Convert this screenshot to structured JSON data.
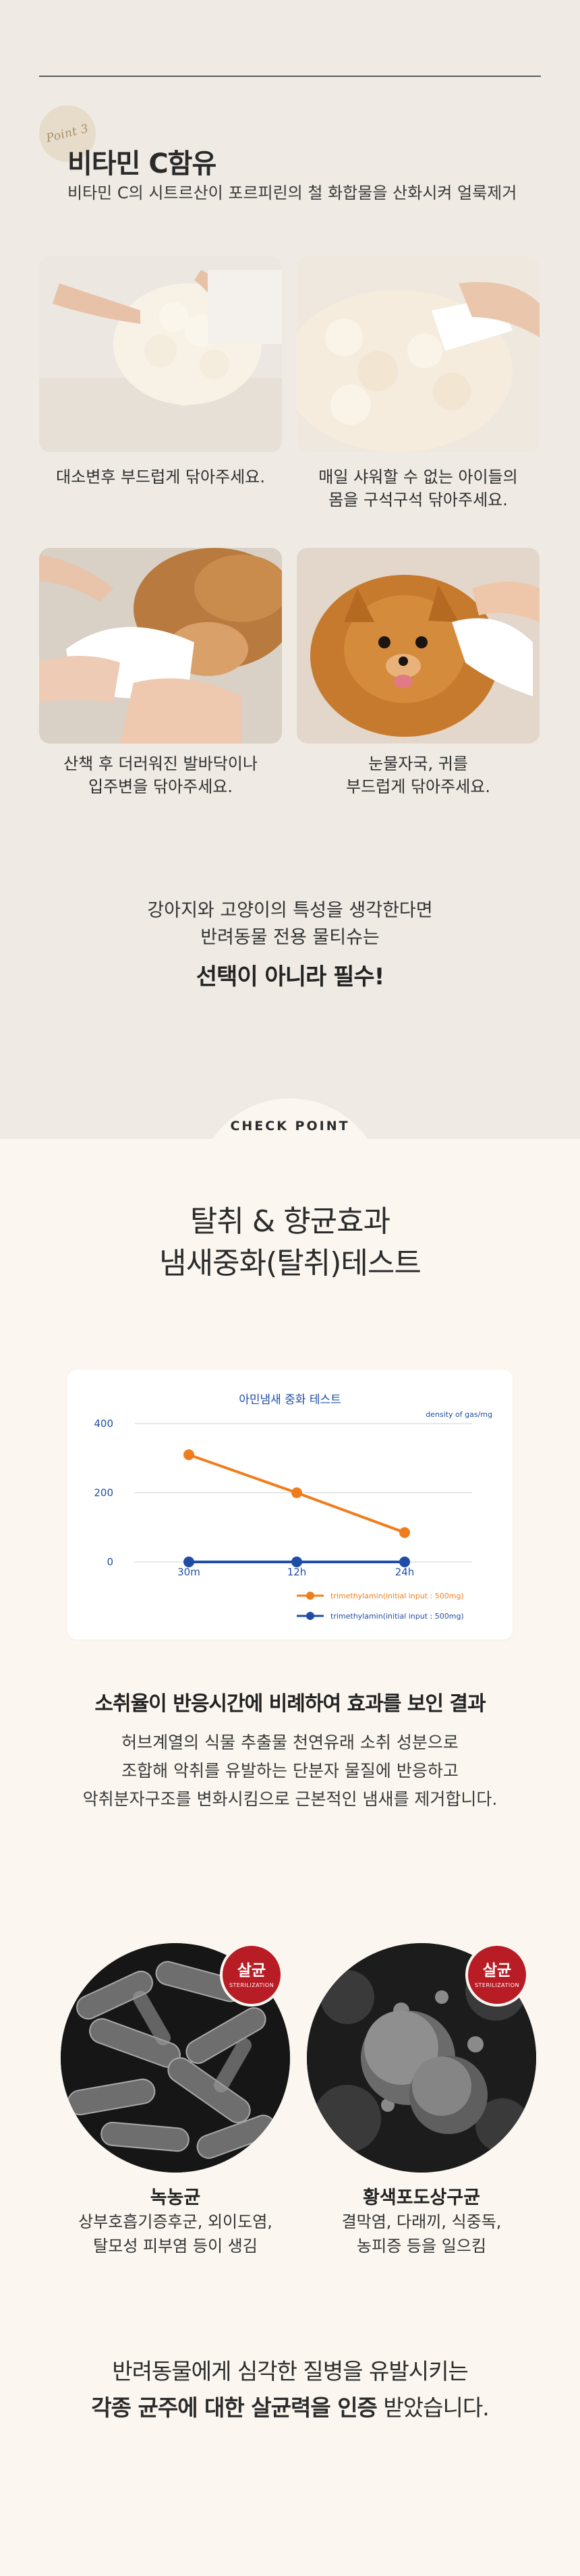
{
  "point": {
    "label": "Point 3"
  },
  "vitamin": {
    "title": "비타민 C함유",
    "desc": "비타민 C의 시트르산이 포르피린의 철 화합물을 산화시켜 얼룩제거"
  },
  "photos": [
    {
      "caption_1": "대소변후 부드럽게 닦아주세요.",
      "caption_2": ""
    },
    {
      "caption_1": "매일 샤워할 수 없는 아이들의",
      "caption_2": "몸을 구석구석 닦아주세요."
    },
    {
      "caption_1": "산책 후 더러워진 발바닥이나",
      "caption_2": "입주변을 닦아주세요."
    },
    {
      "caption_1": "눈물자국, 귀를",
      "caption_2": "부드럽게 닦아주세요."
    }
  ],
  "emphasis": {
    "line1": "강아지와 고양이의 특성을 생각한다면",
    "line2": "반려동물 전용 물티슈는",
    "strong": "선택이 아니라 필수!"
  },
  "check_point": {
    "label": "CHECK POINT"
  },
  "test_section": {
    "title_line1": "탈취 & 향균효과",
    "title_line2": "냄새중화(탈취)테스트"
  },
  "chart_data": {
    "type": "line",
    "title": "아민냄새 중화 테스트",
    "unit_label": "density of gas/mg",
    "categories": [
      "30m",
      "12h",
      "24h"
    ],
    "yticks": [
      0,
      200,
      400
    ],
    "ylim": [
      0,
      400
    ],
    "grid": true,
    "legend_position": "bottom-right",
    "series": [
      {
        "name": "trimethylamin(initial input : 500mg)",
        "color": "#f07d1c",
        "values": [
          310,
          200,
          85
        ]
      },
      {
        "name": "trimethylamin(initial input : 500mg)",
        "color": "#1f4da6",
        "values": [
          0,
          0,
          0
        ]
      }
    ]
  },
  "result": {
    "title": "소취율이 반응시간에 비례하여 효과를 보인 결과",
    "line1": "허브계열의 식물 추출물 천연유래 소취 성분으로",
    "line2": "조합해 악취를 유발하는 단분자 물질에 반응하고",
    "line3": "악취분자구조를 변화시킴으로 근본적인 냄새를 제거합니다."
  },
  "germs": [
    {
      "badge_ko": "살균",
      "badge_en": "STERILIZATION",
      "name": "녹농균",
      "desc_1": "상부호흡기증후군, 외이도염,",
      "desc_2": "탈모성 피부염 등이 생김"
    },
    {
      "badge_ko": "살균",
      "badge_en": "STERILIZATION",
      "name": "황색포도상구균",
      "desc_1": "결막염, 다래끼, 식중독,",
      "desc_2": "농피증 등을 일으킴"
    }
  ],
  "closing": {
    "line1": "반려동물에게 심각한 질병을 유발시키는",
    "bold": "각종 균주에 대한 살균력을 인증",
    "tail": " 받았습니다."
  }
}
